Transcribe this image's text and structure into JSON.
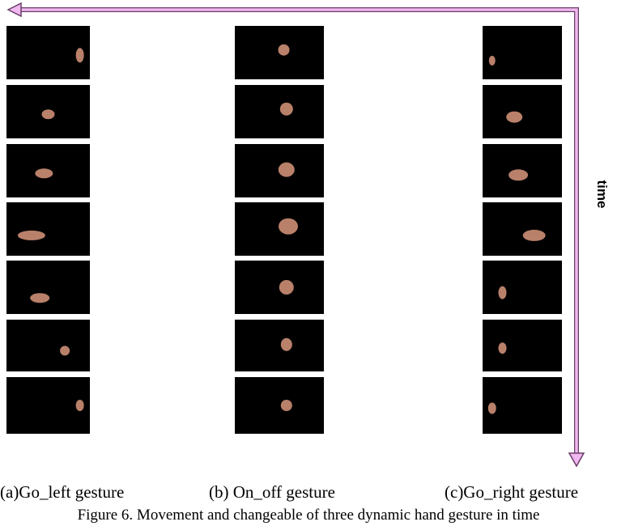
{
  "figure": {
    "axis_label": "time",
    "panels": [
      {
        "label": "(a)Go_left gesture"
      },
      {
        "label": "(b) On_off gesture"
      },
      {
        "label": "(c)Go_right gesture"
      }
    ],
    "caption": "Figure 6.  Movement and changeable of three dynamic hand gesture in time"
  }
}
